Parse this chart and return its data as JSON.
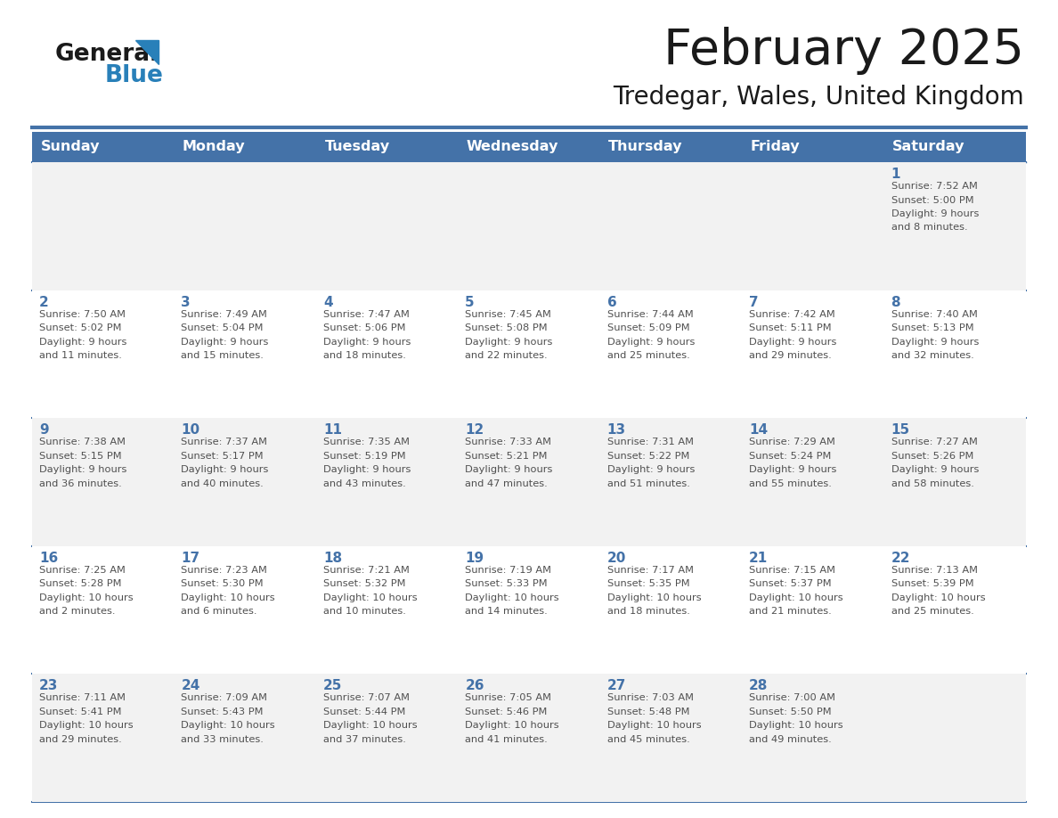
{
  "title": "February 2025",
  "subtitle": "Tredegar, Wales, United Kingdom",
  "days_of_week": [
    "Sunday",
    "Monday",
    "Tuesday",
    "Wednesday",
    "Thursday",
    "Friday",
    "Saturday"
  ],
  "header_bg": "#4472A8",
  "header_text": "#FFFFFF",
  "cell_bg_even": "#F2F2F2",
  "cell_bg_odd": "#FFFFFF",
  "cell_border": "#4472A8",
  "day_number_color": "#4472A8",
  "info_text_color": "#505050",
  "title_color": "#1a1a1a",
  "subtitle_color": "#1a1a1a",
  "logo_general_color": "#1a1a1a",
  "logo_blue_color": "#2980B9",
  "weeks": [
    [
      {
        "day": null,
        "info": ""
      },
      {
        "day": null,
        "info": ""
      },
      {
        "day": null,
        "info": ""
      },
      {
        "day": null,
        "info": ""
      },
      {
        "day": null,
        "info": ""
      },
      {
        "day": null,
        "info": ""
      },
      {
        "day": 1,
        "info": "Sunrise: 7:52 AM\nSunset: 5:00 PM\nDaylight: 9 hours\nand 8 minutes."
      }
    ],
    [
      {
        "day": 2,
        "info": "Sunrise: 7:50 AM\nSunset: 5:02 PM\nDaylight: 9 hours\nand 11 minutes."
      },
      {
        "day": 3,
        "info": "Sunrise: 7:49 AM\nSunset: 5:04 PM\nDaylight: 9 hours\nand 15 minutes."
      },
      {
        "day": 4,
        "info": "Sunrise: 7:47 AM\nSunset: 5:06 PM\nDaylight: 9 hours\nand 18 minutes."
      },
      {
        "day": 5,
        "info": "Sunrise: 7:45 AM\nSunset: 5:08 PM\nDaylight: 9 hours\nand 22 minutes."
      },
      {
        "day": 6,
        "info": "Sunrise: 7:44 AM\nSunset: 5:09 PM\nDaylight: 9 hours\nand 25 minutes."
      },
      {
        "day": 7,
        "info": "Sunrise: 7:42 AM\nSunset: 5:11 PM\nDaylight: 9 hours\nand 29 minutes."
      },
      {
        "day": 8,
        "info": "Sunrise: 7:40 AM\nSunset: 5:13 PM\nDaylight: 9 hours\nand 32 minutes."
      }
    ],
    [
      {
        "day": 9,
        "info": "Sunrise: 7:38 AM\nSunset: 5:15 PM\nDaylight: 9 hours\nand 36 minutes."
      },
      {
        "day": 10,
        "info": "Sunrise: 7:37 AM\nSunset: 5:17 PM\nDaylight: 9 hours\nand 40 minutes."
      },
      {
        "day": 11,
        "info": "Sunrise: 7:35 AM\nSunset: 5:19 PM\nDaylight: 9 hours\nand 43 minutes."
      },
      {
        "day": 12,
        "info": "Sunrise: 7:33 AM\nSunset: 5:21 PM\nDaylight: 9 hours\nand 47 minutes."
      },
      {
        "day": 13,
        "info": "Sunrise: 7:31 AM\nSunset: 5:22 PM\nDaylight: 9 hours\nand 51 minutes."
      },
      {
        "day": 14,
        "info": "Sunrise: 7:29 AM\nSunset: 5:24 PM\nDaylight: 9 hours\nand 55 minutes."
      },
      {
        "day": 15,
        "info": "Sunrise: 7:27 AM\nSunset: 5:26 PM\nDaylight: 9 hours\nand 58 minutes."
      }
    ],
    [
      {
        "day": 16,
        "info": "Sunrise: 7:25 AM\nSunset: 5:28 PM\nDaylight: 10 hours\nand 2 minutes."
      },
      {
        "day": 17,
        "info": "Sunrise: 7:23 AM\nSunset: 5:30 PM\nDaylight: 10 hours\nand 6 minutes."
      },
      {
        "day": 18,
        "info": "Sunrise: 7:21 AM\nSunset: 5:32 PM\nDaylight: 10 hours\nand 10 minutes."
      },
      {
        "day": 19,
        "info": "Sunrise: 7:19 AM\nSunset: 5:33 PM\nDaylight: 10 hours\nand 14 minutes."
      },
      {
        "day": 20,
        "info": "Sunrise: 7:17 AM\nSunset: 5:35 PM\nDaylight: 10 hours\nand 18 minutes."
      },
      {
        "day": 21,
        "info": "Sunrise: 7:15 AM\nSunset: 5:37 PM\nDaylight: 10 hours\nand 21 minutes."
      },
      {
        "day": 22,
        "info": "Sunrise: 7:13 AM\nSunset: 5:39 PM\nDaylight: 10 hours\nand 25 minutes."
      }
    ],
    [
      {
        "day": 23,
        "info": "Sunrise: 7:11 AM\nSunset: 5:41 PM\nDaylight: 10 hours\nand 29 minutes."
      },
      {
        "day": 24,
        "info": "Sunrise: 7:09 AM\nSunset: 5:43 PM\nDaylight: 10 hours\nand 33 minutes."
      },
      {
        "day": 25,
        "info": "Sunrise: 7:07 AM\nSunset: 5:44 PM\nDaylight: 10 hours\nand 37 minutes."
      },
      {
        "day": 26,
        "info": "Sunrise: 7:05 AM\nSunset: 5:46 PM\nDaylight: 10 hours\nand 41 minutes."
      },
      {
        "day": 27,
        "info": "Sunrise: 7:03 AM\nSunset: 5:48 PM\nDaylight: 10 hours\nand 45 minutes."
      },
      {
        "day": 28,
        "info": "Sunrise: 7:00 AM\nSunset: 5:50 PM\nDaylight: 10 hours\nand 49 minutes."
      },
      {
        "day": null,
        "info": ""
      }
    ]
  ],
  "fig_width": 11.88,
  "fig_height": 9.18,
  "dpi": 100
}
